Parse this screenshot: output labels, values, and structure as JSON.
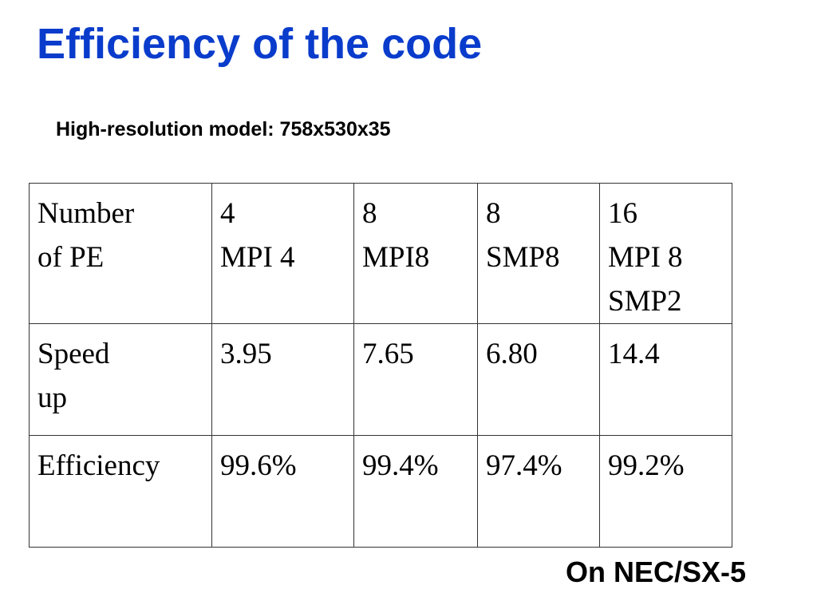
{
  "header": {
    "title": "Efficiency of the code",
    "subtitle": "High-resolution model: 758x530x35"
  },
  "table": {
    "rows": [
      [
        [
          "Number",
          "of PE"
        ],
        [
          "4",
          "MPI 4"
        ],
        [
          "8",
          "MPI8"
        ],
        [
          "8",
          "SMP8"
        ],
        [
          "16",
          "MPI 8",
          "SMP2"
        ]
      ],
      [
        [
          "Speed",
          "up"
        ],
        [
          "3.95"
        ],
        [
          "7.65"
        ],
        [
          "6.80"
        ],
        [
          "14.4"
        ]
      ],
      [
        [
          "Efficiency"
        ],
        [
          "99.6%"
        ],
        [
          "99.4%"
        ],
        [
          "97.4%"
        ],
        [
          "99.2%"
        ]
      ]
    ]
  },
  "footer": {
    "note": "On NEC/SX-5"
  }
}
